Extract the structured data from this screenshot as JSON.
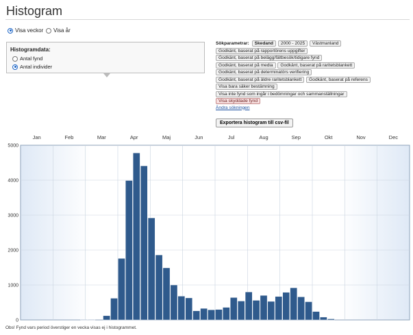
{
  "page": {
    "title": "Histogram"
  },
  "view_toggle": {
    "weeks_label": "Visa veckor",
    "years_label": "Visa år",
    "selected": "weeks"
  },
  "histogram_data": {
    "title": "Histogramdata:",
    "option_findings": "Antal fynd",
    "option_individuals": "Antal individer",
    "selected": "individuals"
  },
  "search_params": {
    "label": "Sökparametrar:",
    "chips": [
      {
        "text": "Skedand",
        "bold": true
      },
      {
        "text": "2000 - 2025"
      },
      {
        "text": "Västmanland"
      },
      {
        "text": "Godkänt, baserat på rapportörens uppgifter"
      },
      {
        "text": "Godkänt, baserat på belägg/fältbesök/tidigare fynd"
      },
      {
        "text": "Godkänt, baserat på media"
      },
      {
        "text": "Godkänt, baserat på raritetsblankett"
      },
      {
        "text": "Godkänt, baserat på determinatörs verifiering"
      },
      {
        "text": "Godkänt, baserat på äldre raritetsblankett"
      },
      {
        "text": "Godkänt, baserat på referens"
      },
      {
        "text": "Visa bara säker bestämning"
      },
      {
        "text": "Visa inte fynd som ingår i bedömningar och sammanställningar"
      },
      {
        "text": "Visa skyddade fynd",
        "alert": true
      }
    ],
    "change_link": "Ändra sökningen"
  },
  "export_button": "Exportera histogram till csv-fil",
  "footnote": "Obs! Fynd vars period överstiger en vecka visas ej i histogrammet.",
  "colors": {
    "bar": "#2f5a8c",
    "bar_edge": "#ffffff",
    "plot_bg_edge": "#e4edf8",
    "grid": "#c9d3df"
  },
  "chart_data": {
    "type": "bar",
    "title": "",
    "xlabel": "",
    "ylabel": "",
    "months": [
      "Jan",
      "Feb",
      "Mar",
      "Apr",
      "Maj",
      "Jun",
      "Jul",
      "Aug",
      "Sep",
      "Okt",
      "Nov",
      "Dec"
    ],
    "yticks": [
      0,
      1000,
      2000,
      3000,
      4000,
      5000
    ],
    "ylim": [
      0,
      5000
    ],
    "n_weeks": 52,
    "grid": true,
    "weeks": [
      1,
      2,
      3,
      4,
      5,
      6,
      7,
      8,
      9,
      10,
      11,
      12,
      13,
      14,
      15,
      16,
      17,
      18,
      19,
      20,
      21,
      22,
      23,
      24,
      25,
      26,
      27,
      28,
      29,
      30,
      31,
      32,
      33,
      34,
      35,
      36,
      37,
      38,
      39,
      40,
      41,
      42,
      43,
      44,
      45,
      46,
      47,
      48,
      49,
      50,
      51,
      52
    ],
    "values": [
      0,
      0,
      0,
      0,
      0,
      0,
      0,
      0,
      10,
      10,
      0,
      120,
      620,
      1760,
      3990,
      4780,
      4410,
      2920,
      1860,
      1490,
      1000,
      680,
      630,
      260,
      330,
      290,
      300,
      360,
      640,
      540,
      800,
      560,
      700,
      530,
      670,
      790,
      920,
      660,
      520,
      240,
      80,
      30,
      0,
      0,
      0,
      0,
      0,
      0,
      0,
      0,
      0,
      0
    ]
  }
}
